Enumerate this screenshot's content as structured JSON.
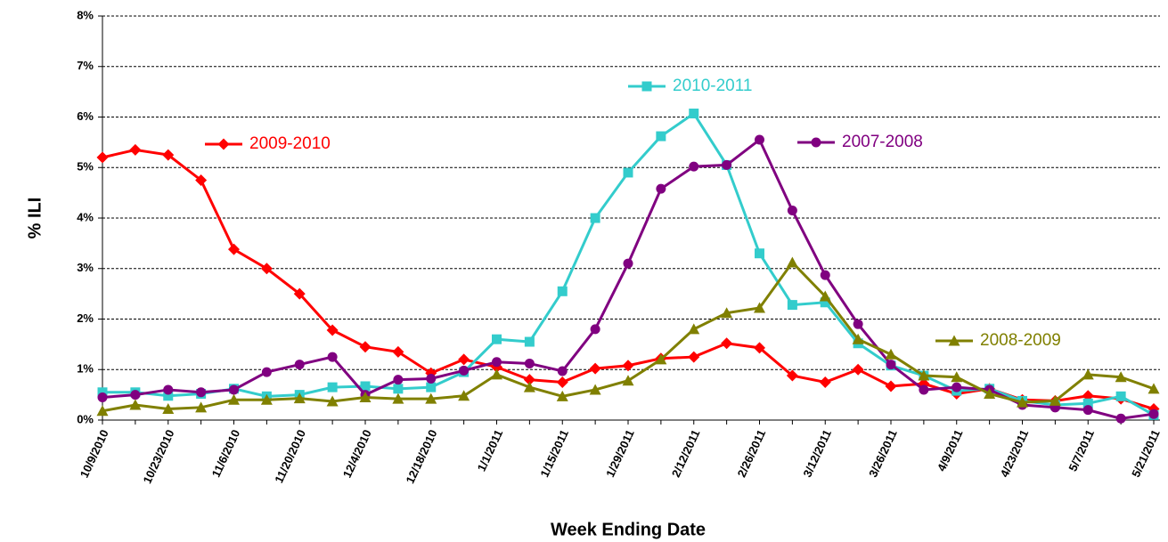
{
  "chart_data": {
    "type": "line",
    "x_label": "Week Ending Date",
    "y_label": "% ILI",
    "categories": [
      "10/9/2010",
      null,
      "10/23/2010",
      null,
      "11/6/2010",
      null,
      "11/20/2010",
      null,
      "12/4/2010",
      null,
      "12/18/2010",
      null,
      "1/1/2011",
      null,
      "1/15/2011",
      null,
      "1/29/2011",
      null,
      "2/12/2011",
      null,
      "2/26/2011",
      null,
      "3/12/2011",
      null,
      "3/26/2011",
      null,
      "4/9/2011",
      null,
      "4/23/2011",
      null,
      "5/7/2011",
      null,
      "5/21/2011"
    ],
    "ylim": [
      0,
      8
    ],
    "yticks": [
      {
        "value": 0,
        "label": "0%"
      },
      {
        "value": 1,
        "label": "1%"
      },
      {
        "value": 2,
        "label": "2%"
      },
      {
        "value": 3,
        "label": "3%"
      },
      {
        "value": 4,
        "label": "4%"
      },
      {
        "value": 5,
        "label": "5%"
      },
      {
        "value": 6,
        "label": "6%"
      },
      {
        "value": 7,
        "label": "7%"
      },
      {
        "value": 8,
        "label": "8%"
      }
    ],
    "grid": true,
    "series": [
      {
        "name": "2009-2010",
        "color": "#ff0000",
        "marker": "diamond",
        "values": [
          5.2,
          5.35,
          5.25,
          4.75,
          3.38,
          3.0,
          2.5,
          1.78,
          1.45,
          1.35,
          0.93,
          1.2,
          1.05,
          0.8,
          0.75,
          1.02,
          1.08,
          1.22,
          1.25,
          1.52,
          1.43,
          0.88,
          0.75,
          1.0,
          0.67,
          0.72,
          0.52,
          0.62,
          0.4,
          0.38,
          0.48,
          0.42,
          0.22
        ]
      },
      {
        "name": "2010-2011",
        "color": "#33cccc",
        "marker": "square",
        "values": [
          0.55,
          0.55,
          0.48,
          0.52,
          0.62,
          0.47,
          0.5,
          0.65,
          0.67,
          0.62,
          0.65,
          0.95,
          1.6,
          1.55,
          2.55,
          4.0,
          4.9,
          5.62,
          6.07,
          5.05,
          3.3,
          2.28,
          2.33,
          1.52,
          1.08,
          0.88,
          0.58,
          0.62,
          0.38,
          0.3,
          0.33,
          0.47,
          0.1
        ]
      },
      {
        "name": "2007-2008",
        "color": "#800080",
        "marker": "circle",
        "values": [
          0.45,
          0.5,
          0.6,
          0.55,
          0.6,
          0.95,
          1.1,
          1.25,
          0.5,
          0.8,
          0.82,
          0.98,
          1.15,
          1.12,
          0.97,
          1.8,
          3.1,
          4.58,
          5.02,
          5.05,
          5.55,
          4.15,
          2.87,
          1.9,
          1.1,
          0.6,
          0.65,
          0.6,
          0.3,
          0.25,
          0.2,
          0.03,
          0.12
        ]
      },
      {
        "name": "2008-2009",
        "color": "#808000",
        "marker": "triangle",
        "values": [
          0.18,
          0.3,
          0.22,
          0.25,
          0.4,
          0.4,
          0.43,
          0.37,
          0.45,
          0.42,
          0.42,
          0.48,
          0.9,
          0.65,
          0.47,
          0.6,
          0.78,
          1.2,
          1.8,
          2.12,
          2.22,
          3.12,
          2.45,
          1.6,
          1.3,
          0.88,
          0.85,
          0.52,
          0.35,
          0.38,
          0.9,
          0.85,
          0.62
        ]
      }
    ]
  }
}
